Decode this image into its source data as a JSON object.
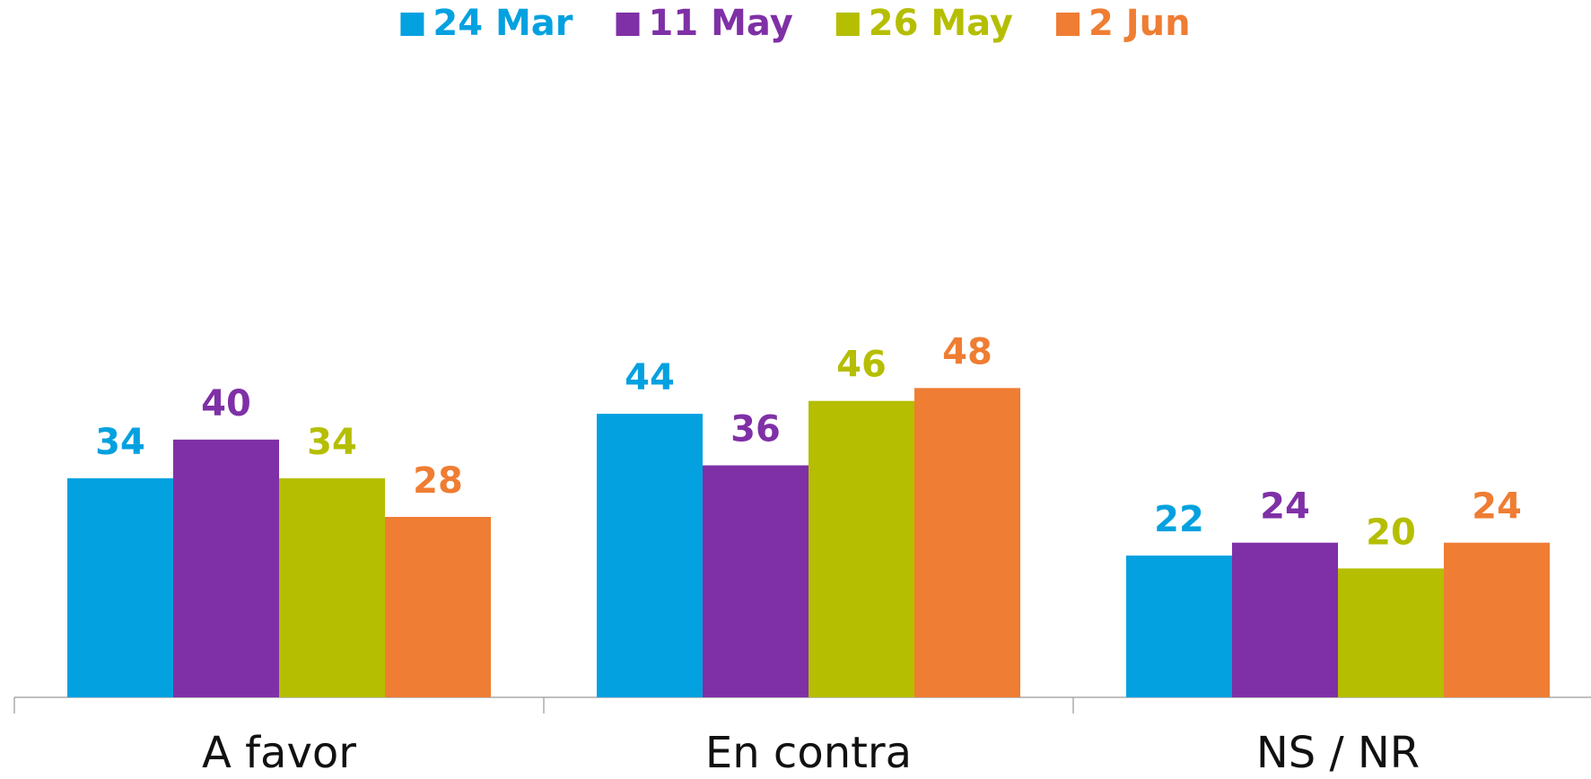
{
  "chart_data": {
    "type": "bar",
    "categories": [
      "A favor",
      "En contra",
      "NS / NR"
    ],
    "series": [
      {
        "name": "24 Mar",
        "color": "#03a1e0",
        "values": [
          34,
          44,
          22
        ]
      },
      {
        "name": "11 May",
        "color": "#7f30a6",
        "values": [
          40,
          36,
          24
        ]
      },
      {
        "name": "26 May",
        "color": "#b5be00",
        "values": [
          34,
          46,
          20
        ]
      },
      {
        "name": "2 Jun",
        "color": "#ef7d33",
        "values": [
          28,
          48,
          24
        ]
      }
    ],
    "ylim": [
      0,
      100
    ],
    "legend": "top",
    "grid": false
  }
}
